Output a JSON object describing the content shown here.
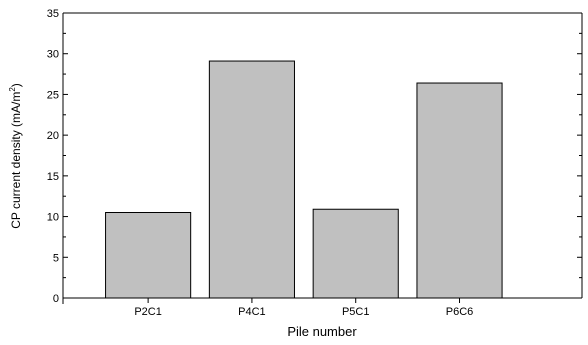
{
  "chart_data": {
    "type": "bar",
    "categories": [
      "P2C1",
      "P4C1",
      "P5C1",
      "P6C6"
    ],
    "values": [
      10.5,
      29.1,
      10.9,
      26.4
    ],
    "xlabel": "Pile number",
    "ylabel": {
      "main": "CP current density (mA/m",
      "sup": "2",
      "close": ")"
    },
    "ylim": [
      0,
      35
    ],
    "yticks": [
      "0",
      "5",
      "10",
      "15",
      "20",
      "25",
      "30",
      "35"
    ],
    "grid": false,
    "bar_color": "#c0c0c0",
    "edge_color": "#000000"
  }
}
